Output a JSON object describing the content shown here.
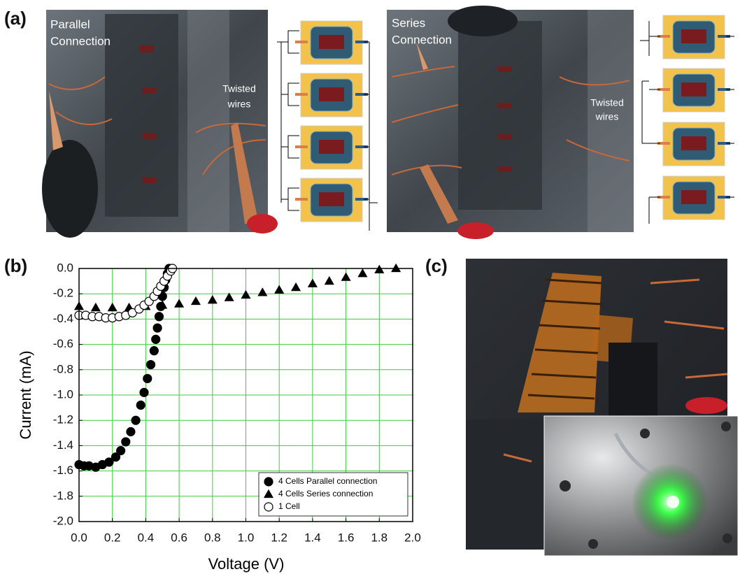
{
  "panel_labels": {
    "a": "(a)",
    "b": "(b)",
    "c": "(c)"
  },
  "photo_parallel": {
    "label": [
      "Parallel",
      "Connection"
    ],
    "annotation": [
      "Twisted",
      "wires"
    ]
  },
  "photo_series": {
    "label": [
      "Series",
      "Connection"
    ],
    "annotation": [
      "Twisted",
      "wires"
    ]
  },
  "chart_data": {
    "type": "scatter",
    "x_label": "Voltage (V)",
    "y_label": "Current (mA)",
    "xlim": [
      0,
      2
    ],
    "ylim": [
      -2,
      0
    ],
    "xticks": [
      {
        "value": 0,
        "label": "0.0"
      },
      0.2,
      0.4,
      0.6,
      0.8,
      {
        "value": 1,
        "label": "1.0"
      },
      1.2,
      1.4,
      1.6,
      1.8,
      {
        "value": 2,
        "label": "2.0"
      }
    ],
    "yticks": [
      {
        "value": -2,
        "label": "-2.0"
      },
      -1.8,
      -1.6,
      -1.4,
      -1.2,
      {
        "value": -1,
        "label": "-1.0"
      },
      -0.8,
      -0.6,
      -0.4,
      -0.2,
      {
        "value": 0,
        "label": "0.0"
      }
    ],
    "grid": true,
    "grid_color": "#3ccc3c",
    "legend": "lower right",
    "series": [
      {
        "name": "4 Cells Parallel connection",
        "color": "#000000",
        "marker": "circle",
        "filled": true,
        "x": [
          0,
          0.03,
          0.06,
          0.1,
          0.14,
          0.18,
          0.22,
          0.25,
          0.28,
          0.31,
          0.34,
          0.37,
          0.39,
          0.41,
          0.43,
          0.45,
          0.46,
          0.47,
          0.48,
          0.49,
          0.5,
          0.51,
          0.52,
          0.53,
          0.54
        ],
        "values": [
          -1.55,
          -1.56,
          -1.56,
          -1.57,
          -1.55,
          -1.53,
          -1.49,
          -1.44,
          -1.37,
          -1.29,
          -1.2,
          -1.08,
          -0.98,
          -0.87,
          -0.76,
          -0.65,
          -0.56,
          -0.47,
          -0.38,
          -0.3,
          -0.22,
          -0.15,
          -0.09,
          -0.04,
          0
        ]
      },
      {
        "name": "4 Cells Series connection",
        "color": "#000000",
        "marker": "triangle",
        "filled": true,
        "x": [
          0,
          0.1,
          0.2,
          0.3,
          0.4,
          0.5,
          0.6,
          0.7,
          0.8,
          0.9,
          1,
          1.1,
          1.2,
          1.3,
          1.4,
          1.5,
          1.6,
          1.7,
          1.8,
          1.9
        ],
        "values": [
          -0.3,
          -0.31,
          -0.31,
          -0.31,
          -0.3,
          -0.29,
          -0.28,
          -0.26,
          -0.25,
          -0.23,
          -0.21,
          -0.19,
          -0.17,
          -0.15,
          -0.12,
          -0.1,
          -0.07,
          -0.04,
          -0.01,
          0
        ]
      },
      {
        "name": "1 Cell",
        "color": "#000000",
        "marker": "circle",
        "filled": false,
        "x": [
          0,
          0.04,
          0.08,
          0.12,
          0.16,
          0.2,
          0.24,
          0.28,
          0.32,
          0.36,
          0.39,
          0.42,
          0.45,
          0.47,
          0.49,
          0.51,
          0.53,
          0.55,
          0.56
        ],
        "values": [
          -0.37,
          -0.37,
          -0.38,
          -0.38,
          -0.39,
          -0.39,
          -0.38,
          -0.37,
          -0.35,
          -0.32,
          -0.29,
          -0.26,
          -0.22,
          -0.18,
          -0.14,
          -0.1,
          -0.06,
          -0.02,
          0
        ]
      }
    ]
  }
}
